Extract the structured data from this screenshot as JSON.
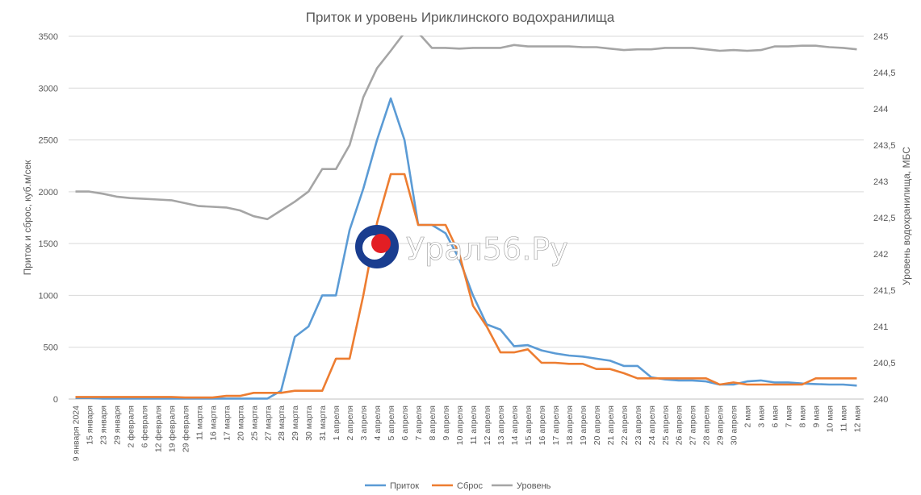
{
  "chart_data": {
    "type": "line",
    "title": "Приток и уровень Ириклинского водохранилища",
    "ylabel_left": "Приток и сброс, куб.м/сек",
    "ylabel_right": "Уровень водохранилища, МБС",
    "ylim_left": [
      0,
      3500
    ],
    "ylim_right": [
      240,
      245
    ],
    "yticks_left": [
      "0",
      "500",
      "1000",
      "1500",
      "2000",
      "2500",
      "3000",
      "3500"
    ],
    "yticks_right": [
      "240",
      "240,5",
      "241",
      "241,5",
      "242",
      "242,5",
      "243",
      "243,5",
      "244",
      "244,5",
      "245"
    ],
    "grid": "horizontal",
    "legend_position": "bottom",
    "categories": [
      "9 января 2024",
      "15 января",
      "23 января",
      "29 января",
      "2 февраля",
      "6 февраля",
      "12 февраля",
      "19 февраля",
      "29 февраля",
      "11 марта",
      "16 марта",
      "17 марта",
      "20 марта",
      "25 марта",
      "27 марта",
      "28 марта",
      "29 марта",
      "30 марта",
      "31 марта",
      "1 апреля",
      "2 апреля",
      "3 апреля",
      "4 апреля",
      "5 апреля",
      "6 апреля",
      "7 апреля",
      "8 апреля",
      "9 апреля",
      "10 апреля",
      "11 апреля",
      "12 апреля",
      "13 апреля",
      "14 апреля",
      "15 апреля",
      "16 апреля",
      "17 апреля",
      "18 апреля",
      "19 апреля",
      "20 апреля",
      "21 апреля",
      "22 апреля",
      "23 апреля",
      "24 апреля",
      "25 апреля",
      "26 апреля",
      "27 апреля",
      "28 апреля",
      "29 апреля",
      "30 апреля",
      "2 мая",
      "3 мая",
      "6 мая",
      "7 мая",
      "8 мая",
      "9 мая",
      "10 мая",
      "11 мая",
      "12 мая"
    ],
    "series": [
      {
        "name": "Приток",
        "axis": "left",
        "color": "#5b9bd5",
        "values": [
          10,
          10,
          5,
          5,
          5,
          5,
          5,
          5,
          5,
          5,
          5,
          5,
          5,
          5,
          5,
          80,
          600,
          700,
          1000,
          1000,
          1630,
          2030,
          2500,
          2900,
          2500,
          1680,
          1680,
          1600,
          1350,
          1000,
          720,
          670,
          510,
          520,
          470,
          440,
          420,
          410,
          390,
          370,
          320,
          320,
          210,
          190,
          180,
          180,
          170,
          140,
          140,
          170,
          180,
          160,
          160,
          150,
          145,
          140,
          140,
          130
        ]
      },
      {
        "name": "Сброс",
        "axis": "left",
        "color": "#ed7d31",
        "values": [
          20,
          20,
          20,
          20,
          20,
          20,
          20,
          20,
          15,
          15,
          15,
          30,
          30,
          60,
          60,
          60,
          80,
          80,
          80,
          390,
          390,
          1000,
          1700,
          2170,
          2170,
          1680,
          1680,
          1680,
          1400,
          900,
          700,
          450,
          450,
          480,
          350,
          350,
          340,
          340,
          290,
          290,
          250,
          200,
          200,
          200,
          200,
          200,
          200,
          140,
          160,
          140,
          140,
          140,
          140,
          140,
          200,
          200,
          200,
          200
        ]
      },
      {
        "name": "Уровень",
        "axis": "right",
        "color": "#a5a5a5",
        "values": [
          242.86,
          242.86,
          242.83,
          242.79,
          242.77,
          242.76,
          242.75,
          242.74,
          242.7,
          242.66,
          242.65,
          242.64,
          242.6,
          242.52,
          242.48,
          242.6,
          242.72,
          242.86,
          243.17,
          243.17,
          243.5,
          244.16,
          244.56,
          244.8,
          245.05,
          245.05,
          244.84,
          244.84,
          244.83,
          244.84,
          244.84,
          244.84,
          244.88,
          244.86,
          244.86,
          244.86,
          244.86,
          244.85,
          244.85,
          244.83,
          244.81,
          244.82,
          244.82,
          244.84,
          244.84,
          244.84,
          244.82,
          244.8,
          244.81,
          244.8,
          244.81,
          244.86,
          244.86,
          244.87,
          244.87,
          244.85,
          244.84,
          244.82
        ]
      }
    ]
  },
  "watermark": {
    "text": "Урал56.Ру",
    "logo_colors": [
      "#1a3d8f",
      "#e31e24",
      "#ffffff"
    ]
  }
}
